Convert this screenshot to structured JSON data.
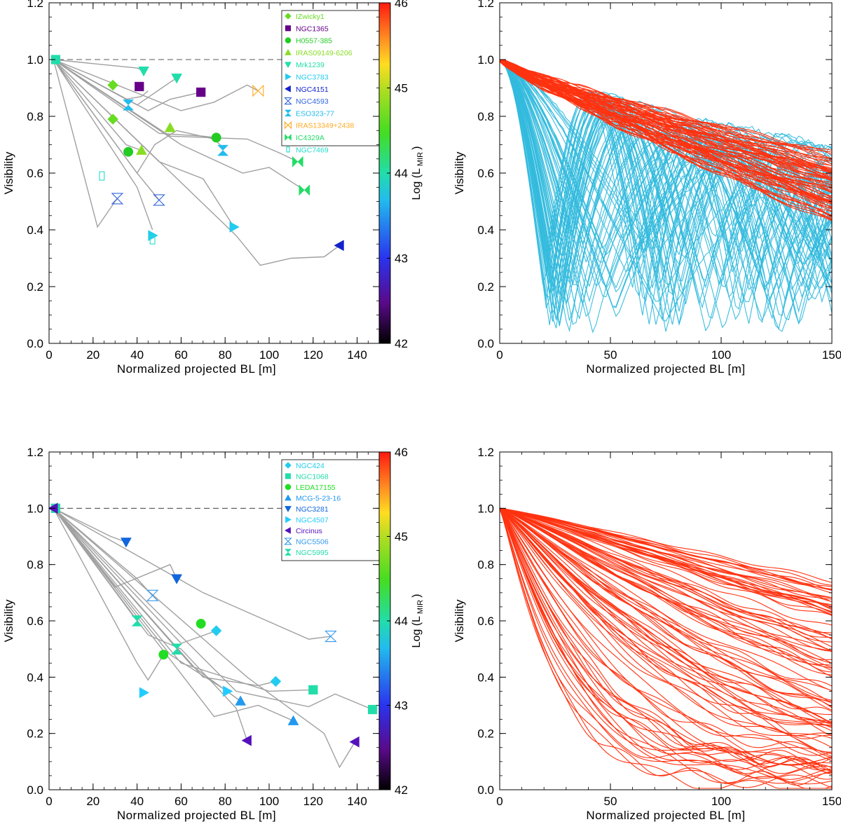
{
  "chart_data": [
    {
      "type": "scatter",
      "panel": "top-left",
      "xlabel": "Normalized projected BL [m]",
      "ylabel": "Visibility",
      "xlim": [
        0,
        150
      ],
      "ylim": [
        0,
        1.2
      ],
      "xticks": [
        "0",
        "20",
        "40",
        "60",
        "80",
        "100",
        "120",
        "140"
      ],
      "yticks": [
        "0.0",
        "0.2",
        "0.4",
        "0.6",
        "0.8",
        "1.0",
        "1.2"
      ],
      "reference_line": 1.0,
      "colorbar": {
        "label": "Log (L",
        "label_sub": "MIR",
        "label_end": ")",
        "range": [
          42,
          46
        ],
        "ticks": [
          "42",
          "43",
          "44",
          "45",
          "46"
        ]
      },
      "legend": [
        {
          "name": "IZwicky1",
          "marker": "diamond",
          "color": "#66dd22"
        },
        {
          "name": "NGC1365",
          "marker": "square",
          "color": "#660088"
        },
        {
          "name": "H0557-385",
          "marker": "circle",
          "color": "#22cc22"
        },
        {
          "name": "IRAS09149-6206",
          "marker": "triangle-up",
          "color": "#88dd22"
        },
        {
          "name": "Mrk1239",
          "marker": "triangle-down",
          "color": "#22ddaa"
        },
        {
          "name": "NGC3783",
          "marker": "triangle-right",
          "color": "#22ccee"
        },
        {
          "name": "NGC4151",
          "marker": "triangle-left",
          "color": "#1122cc"
        },
        {
          "name": "NGC4593",
          "marker": "hourglass-open",
          "color": "#3366dd"
        },
        {
          "name": "ESO323-77",
          "marker": "hourglass",
          "color": "#22bbee"
        },
        {
          "name": "IRAS13349+2438",
          "marker": "bowtie-open",
          "color": "#ffaa22"
        },
        {
          "name": "IC4329A",
          "marker": "bowtie",
          "color": "#22dd66"
        },
        {
          "name": "NGC7469",
          "marker": "rect-open",
          "color": "#22ddcc"
        }
      ],
      "series": [
        {
          "name": "IZwicky1",
          "points": [
            [
              29,
              0.91
            ],
            [
              29,
              0.79
            ]
          ]
        },
        {
          "name": "NGC1365",
          "points": [
            [
              41,
              0.905
            ],
            [
              69,
              0.885
            ]
          ]
        },
        {
          "name": "H0557-385",
          "points": [
            [
              36,
              0.675
            ],
            [
              76,
              0.725
            ]
          ]
        },
        {
          "name": "IRAS09149-6206",
          "points": [
            [
              42,
              0.68
            ],
            [
              55,
              0.76
            ]
          ]
        },
        {
          "name": "Mrk1239",
          "points": [
            [
              43,
              0.96
            ],
            [
              58,
              0.935
            ]
          ]
        },
        {
          "name": "NGC3783",
          "points": [
            [
              47,
              0.38
            ],
            [
              84,
              0.41
            ]
          ]
        },
        {
          "name": "NGC4151",
          "points": [
            [
              132,
              0.345
            ]
          ]
        },
        {
          "name": "NGC4593",
          "points": [
            [
              31,
              0.51
            ],
            [
              50,
              0.505
            ]
          ]
        },
        {
          "name": "ESO323-77",
          "points": [
            [
              36,
              0.84
            ],
            [
              79,
              0.68
            ]
          ]
        },
        {
          "name": "IRAS13349+2438",
          "points": [
            [
              95,
              0.89
            ]
          ]
        },
        {
          "name": "IC4329A",
          "points": [
            [
              113,
              0.64
            ],
            [
              116,
              0.54
            ]
          ]
        },
        {
          "name": "NGC7469",
          "points": [
            [
              24,
              0.59
            ],
            [
              47,
              0.365
            ]
          ]
        },
        {
          "name": "NGC1068",
          "points": [
            [
              3,
              1.0
            ]
          ]
        }
      ],
      "model_curves": [
        [
          [
            2,
            1.0
          ],
          [
            35,
            0.86
          ],
          [
            42,
            0.87
          ],
          [
            45,
            0.89
          ]
        ],
        [
          [
            2,
            1.0
          ],
          [
            60,
            0.82
          ],
          [
            75,
            0.85
          ],
          [
            90,
            0.91
          ],
          [
            95,
            0.89
          ]
        ],
        [
          [
            2,
            1.0
          ],
          [
            40,
            0.6
          ],
          [
            48,
            0.7
          ],
          [
            58,
            0.75
          ],
          [
            75,
            0.72
          ],
          [
            79,
            0.69
          ]
        ],
        [
          [
            2,
            1.0
          ],
          [
            55,
            0.73
          ],
          [
            90,
            0.72
          ],
          [
            105,
            0.67
          ],
          [
            113,
            0.64
          ]
        ],
        [
          [
            2,
            1.0
          ],
          [
            60,
            0.7
          ],
          [
            88,
            0.6
          ],
          [
            100,
            0.62
          ],
          [
            116,
            0.54
          ]
        ],
        [
          [
            2,
            1.0
          ],
          [
            85,
            0.38
          ],
          [
            96,
            0.275
          ],
          [
            110,
            0.3
          ],
          [
            125,
            0.305
          ],
          [
            132,
            0.345
          ]
        ],
        [
          [
            2,
            1.0
          ],
          [
            22,
            0.41
          ],
          [
            30,
            0.5
          ],
          [
            31,
            0.51
          ]
        ],
        [
          [
            2,
            1.0
          ],
          [
            40,
            0.55
          ],
          [
            47,
            0.4
          ]
        ],
        [
          [
            2,
            1.0
          ],
          [
            50,
            0.64
          ],
          [
            70,
            0.58
          ],
          [
            84,
            0.41
          ]
        ],
        [
          [
            2,
            1.0
          ],
          [
            40,
            0.84
          ],
          [
            55,
            0.92
          ],
          [
            58,
            0.935
          ]
        ],
        [
          [
            2,
            1.0
          ],
          [
            45,
            0.82
          ],
          [
            55,
            0.86
          ],
          [
            69,
            0.885
          ]
        ],
        [
          [
            2,
            1.0
          ],
          [
            50,
            0.74
          ],
          [
            70,
            0.73
          ],
          [
            76,
            0.725
          ]
        ],
        [
          [
            2,
            1.0
          ],
          [
            40,
            0.6
          ],
          [
            50,
            0.505
          ]
        ],
        [
          [
            2,
            1.0
          ],
          [
            35,
            0.7
          ],
          [
            42,
            0.68
          ]
        ],
        [
          [
            2,
            1.0
          ],
          [
            40,
            0.97
          ],
          [
            43,
            0.96
          ]
        ]
      ]
    },
    {
      "type": "line",
      "panel": "top-right",
      "xlabel": "Normalized projected BL [m]",
      "ylabel": "Visibility",
      "xlim": [
        0,
        150
      ],
      "ylim": [
        0,
        1.2
      ],
      "xticks": [
        "0",
        "50",
        "100",
        "150"
      ],
      "yticks": [
        "0.0",
        "0.2",
        "0.4",
        "0.6",
        "0.8",
        "1.0",
        "1.2"
      ],
      "series": [
        {
          "name": "red model curves",
          "color": "#ff3311",
          "count": 70,
          "description": "family of gently declining visibility curves from 1.0 at 0 m to ~0.45-0.65 at 150 m"
        },
        {
          "name": "cyan model curves",
          "color": "#33bbdd",
          "count": 75,
          "description": "family of oscillating visibility curves, minima between 0.0 and 0.6"
        }
      ]
    },
    {
      "type": "scatter",
      "panel": "bottom-left",
      "xlabel": "Normalized projected BL [m]",
      "ylabel": "Visibility",
      "xlim": [
        0,
        150
      ],
      "ylim": [
        0,
        1.2
      ],
      "xticks": [
        "0",
        "20",
        "40",
        "60",
        "80",
        "100",
        "120",
        "140"
      ],
      "yticks": [
        "0.0",
        "0.2",
        "0.4",
        "0.6",
        "0.8",
        "1.0",
        "1.2"
      ],
      "reference_line": 1.0,
      "colorbar": {
        "label": "Log (L",
        "label_sub": "MIR",
        "label_end": ")",
        "range": [
          42,
          46
        ],
        "ticks": [
          "42",
          "43",
          "44",
          "45",
          "46"
        ]
      },
      "legend": [
        {
          "name": "NGC424",
          "marker": "diamond",
          "color": "#22ccee"
        },
        {
          "name": "NGC1068",
          "marker": "square",
          "color": "#22ddaa"
        },
        {
          "name": "LEDA17155",
          "marker": "circle",
          "color": "#22dd22"
        },
        {
          "name": "MCG-5-23-16",
          "marker": "triangle-up",
          "color": "#2299ee"
        },
        {
          "name": "NGC3281",
          "marker": "triangle-down",
          "color": "#1166dd"
        },
        {
          "name": "NGC4507",
          "marker": "triangle-right",
          "color": "#22ccff"
        },
        {
          "name": "Circinus",
          "marker": "triangle-left",
          "color": "#5511bb"
        },
        {
          "name": "NGC5506",
          "marker": "hourglass-open",
          "color": "#3399ee"
        },
        {
          "name": "NGC5995",
          "marker": "hourglass",
          "color": "#22ddaa"
        }
      ],
      "series": [
        {
          "name": "NGC424",
          "points": [
            [
              76,
              0.565
            ],
            [
              103,
              0.385
            ]
          ]
        },
        {
          "name": "NGC1068",
          "points": [
            [
              3,
              1.0
            ],
            [
              120,
              0.355
            ],
            [
              147,
              0.285
            ]
          ]
        },
        {
          "name": "LEDA17155",
          "points": [
            [
              52,
              0.48
            ],
            [
              69,
              0.59
            ]
          ]
        },
        {
          "name": "MCG-5-23-16",
          "points": [
            [
              87,
              0.315
            ],
            [
              111,
              0.245
            ]
          ]
        },
        {
          "name": "NGC3281",
          "points": [
            [
              35,
              0.88
            ],
            [
              58,
              0.75
            ]
          ]
        },
        {
          "name": "NGC4507",
          "points": [
            [
              43,
              0.345
            ],
            [
              81,
              0.35
            ]
          ]
        },
        {
          "name": "Circinus",
          "points": [
            [
              2,
              1.0
            ],
            [
              90,
              0.175
            ],
            [
              139,
              0.17
            ]
          ]
        },
        {
          "name": "NGC5506",
          "points": [
            [
              47,
              0.69
            ],
            [
              128,
              0.545
            ]
          ]
        },
        {
          "name": "NGC5995",
          "points": [
            [
              40,
              0.6
            ],
            [
              58,
              0.5
            ]
          ]
        }
      ],
      "model_curves": [
        [
          [
            2,
            1.0
          ],
          [
            30,
            0.72
          ],
          [
            55,
            0.8
          ],
          [
            58,
            0.75
          ]
        ],
        [
          [
            2,
            1.0
          ],
          [
            45,
            0.55
          ],
          [
            60,
            0.5
          ],
          [
            85,
            0.29
          ],
          [
            90,
            0.175
          ]
        ],
        [
          [
            2,
            1.0
          ],
          [
            40,
            0.45
          ],
          [
            45,
            0.39
          ],
          [
            52,
            0.48
          ]
        ],
        [
          [
            2,
            1.0
          ],
          [
            55,
            0.48
          ],
          [
            75,
            0.38
          ],
          [
            81,
            0.35
          ]
        ],
        [
          [
            2,
            1.0
          ],
          [
            60,
            0.52
          ],
          [
            76,
            0.565
          ]
        ],
        [
          [
            2,
            1.0
          ],
          [
            65,
            0.44
          ],
          [
            87,
            0.315
          ]
        ],
        [
          [
            2,
            1.0
          ],
          [
            70,
            0.4
          ],
          [
            95,
            0.37
          ],
          [
            103,
            0.385
          ]
        ],
        [
          [
            2,
            1.0
          ],
          [
            85,
            0.35
          ],
          [
            118,
            0.295
          ],
          [
            130,
            0.34
          ],
          [
            147,
            0.285
          ]
        ],
        [
          [
            2,
            1.0
          ],
          [
            60,
            0.45
          ],
          [
            100,
            0.35
          ],
          [
            120,
            0.355
          ]
        ],
        [
          [
            2,
            1.0
          ],
          [
            90,
            0.4
          ],
          [
            125,
            0.2
          ],
          [
            132,
            0.08
          ],
          [
            139,
            0.17
          ]
        ],
        [
          [
            2,
            1.0
          ],
          [
            70,
            0.7
          ],
          [
            118,
            0.535
          ],
          [
            128,
            0.545
          ]
        ],
        [
          [
            2,
            1.0
          ],
          [
            75,
            0.26
          ],
          [
            95,
            0.3
          ],
          [
            111,
            0.245
          ]
        ],
        [
          [
            2,
            1.0
          ],
          [
            38,
            0.62
          ],
          [
            40,
            0.6
          ]
        ],
        [
          [
            2,
            1.0
          ],
          [
            40,
            0.75
          ],
          [
            47,
            0.69
          ]
        ],
        [
          [
            2,
            1.0
          ],
          [
            28,
            0.9
          ],
          [
            35,
            0.88
          ]
        ]
      ]
    },
    {
      "type": "line",
      "panel": "bottom-right",
      "xlabel": "Normalized projected BL [m]",
      "ylabel": "Visibility",
      "xlim": [
        0,
        150
      ],
      "ylim": [
        0,
        1.2
      ],
      "xticks": [
        "0",
        "50",
        "100",
        "150"
      ],
      "yticks": [
        "0.0",
        "0.2",
        "0.4",
        "0.6",
        "0.8",
        "1.0",
        "1.2"
      ],
      "series": [
        {
          "name": "red model curves",
          "color": "#ff3311",
          "count": 100,
          "description": "family of declining visibility curves from 1.0 at 0 m down to 0.02-0.7 at 150 m"
        }
      ]
    }
  ]
}
